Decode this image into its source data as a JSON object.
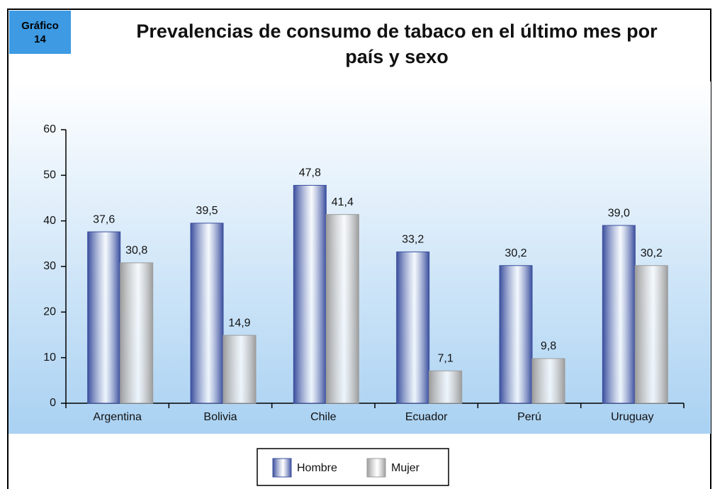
{
  "badge": [
    "Gráfico",
    "14"
  ],
  "chart_data": {
    "type": "bar",
    "title": "Prevalencias de consumo de tabaco en el último mes por país y sexo",
    "categories": [
      "Argentina",
      "Bolivia",
      "Chile",
      "Ecuador",
      "Perú",
      "Uruguay"
    ],
    "series": [
      {
        "name": "Hombre",
        "color": "#3b4f9e",
        "values": [
          37.6,
          39.5,
          47.8,
          33.2,
          30.2,
          39.0
        ],
        "value_labels": [
          "37,6",
          "39,5",
          "47,8",
          "33,2",
          "30,2",
          "39,0"
        ]
      },
      {
        "name": "Mujer",
        "color": "#9c9c9c",
        "values": [
          30.8,
          14.9,
          41.4,
          7.1,
          9.8,
          30.2
        ],
        "value_labels": [
          "30,8",
          "14,9",
          "41,4",
          "7,1",
          "9,8",
          "30,2"
        ]
      }
    ],
    "ylim": [
      0,
      60
    ],
    "yticks": [
      0,
      10,
      20,
      30,
      40,
      50,
      60
    ],
    "grid": false,
    "legend": "bottom"
  }
}
